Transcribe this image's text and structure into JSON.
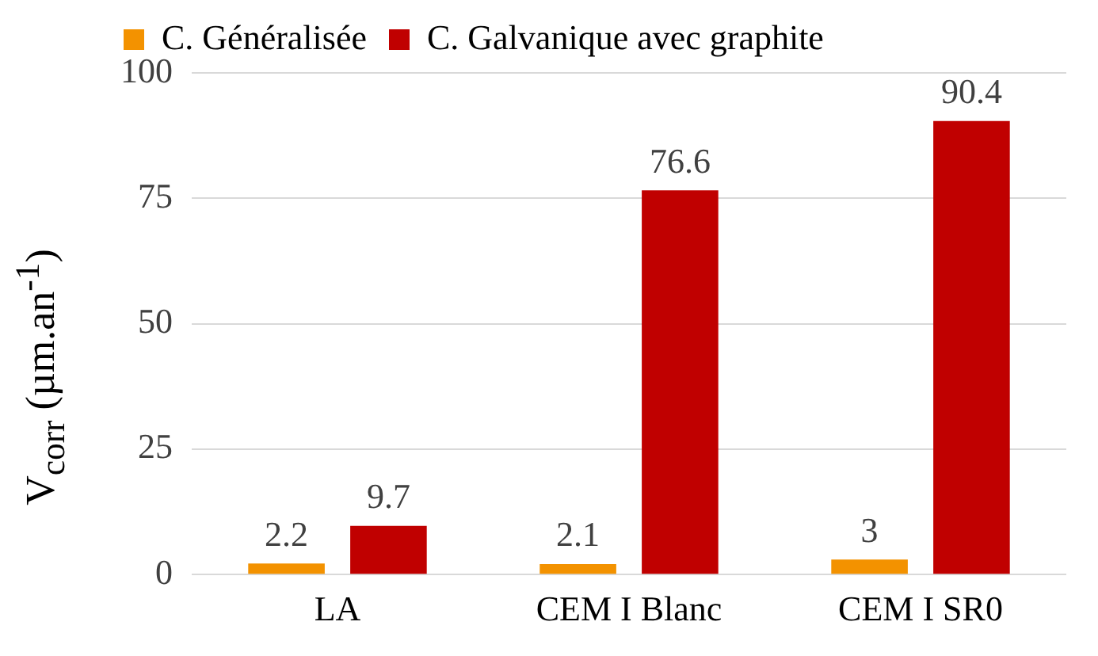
{
  "chart_data": {
    "type": "bar",
    "ylabel": "V$_{corr}$ (µm.an$^{-1}$)",
    "categories": [
      "LA",
      "CEM I Blanc",
      "CEM I SR0"
    ],
    "series": [
      {
        "name": "C. Généralisée",
        "color": "#f39200",
        "values": [
          2.2,
          2.1,
          3
        ]
      },
      {
        "name": "C. Galvanique avec graphite",
        "color": "#c00000",
        "values": [
          9.7,
          76.6,
          90.4
        ]
      }
    ],
    "ylim": [
      0,
      100
    ],
    "yticks": [
      0,
      25,
      50,
      75,
      100
    ],
    "grid": "y",
    "legend": "top left",
    "data_labels": true
  }
}
